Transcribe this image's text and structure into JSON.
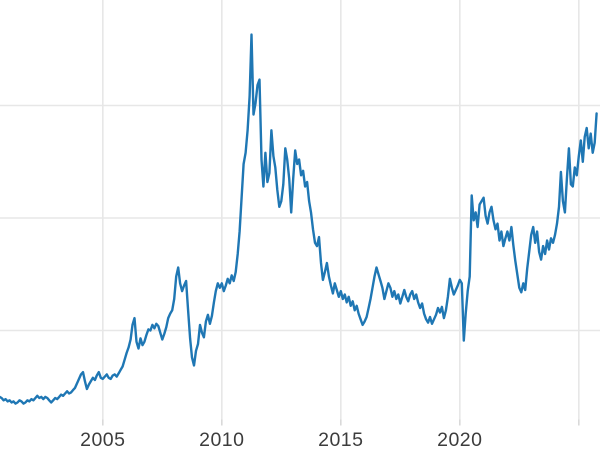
{
  "chart_data": {
    "type": "line",
    "title": "",
    "xlabel": "",
    "ylabel": "",
    "legend": null,
    "grid": true,
    "y_axis_labels_visible": false,
    "x_ticks": [
      {
        "year": 2005,
        "label": "2005"
      },
      {
        "year": 2010,
        "label": "2010"
      },
      {
        "year": 2015,
        "label": "2015"
      },
      {
        "year": 2020,
        "label": "2020"
      },
      {
        "year": 2025,
        "label": ""
      }
    ],
    "y_gridlines_relative_units": [
      1,
      2,
      3
    ],
    "xlim": [
      2000.68,
      2025.89
    ],
    "ylim_relative_units": [
      0.2,
      3.94
    ],
    "colors": {
      "line": "#1f77b4",
      "gridline": "#e7e7e7",
      "tick_mark": "#d9d9d9",
      "tick_label": "#3c3c3c",
      "background": "#ffffff"
    },
    "series": {
      "name": "price-line",
      "x_start_year": 2000.5833,
      "x_step_years": 0.0833333,
      "note": "y values in relative units; horizontal gridlines sit at 1, 2 and 3 (no numeric y labels visible in image)",
      "y_relative_units": [
        0.4,
        0.41,
        0.4,
        0.38,
        0.39,
        0.37,
        0.38,
        0.36,
        0.37,
        0.35,
        0.36,
        0.38,
        0.37,
        0.35,
        0.36,
        0.38,
        0.37,
        0.39,
        0.38,
        0.4,
        0.42,
        0.4,
        0.41,
        0.39,
        0.41,
        0.4,
        0.38,
        0.36,
        0.38,
        0.4,
        0.39,
        0.41,
        0.43,
        0.42,
        0.44,
        0.46,
        0.44,
        0.45,
        0.47,
        0.49,
        0.53,
        0.57,
        0.61,
        0.63,
        0.55,
        0.48,
        0.52,
        0.55,
        0.58,
        0.56,
        0.6,
        0.63,
        0.58,
        0.57,
        0.59,
        0.61,
        0.58,
        0.57,
        0.6,
        0.61,
        0.59,
        0.62,
        0.65,
        0.68,
        0.74,
        0.8,
        0.85,
        0.92,
        1.05,
        1.11,
        0.9,
        0.84,
        0.93,
        0.87,
        0.9,
        0.96,
        1.01,
        1.0,
        1.05,
        1.02,
        1.06,
        1.04,
        0.98,
        0.92,
        0.97,
        1.03,
        1.11,
        1.15,
        1.18,
        1.28,
        1.48,
        1.56,
        1.42,
        1.35,
        1.4,
        1.44,
        1.18,
        0.93,
        0.76,
        0.69,
        0.82,
        0.88,
        1.05,
        0.98,
        0.94,
        1.08,
        1.14,
        1.06,
        1.13,
        1.25,
        1.35,
        1.42,
        1.38,
        1.42,
        1.35,
        1.4,
        1.46,
        1.42,
        1.49,
        1.44,
        1.52,
        1.68,
        1.88,
        2.18,
        2.48,
        2.58,
        2.78,
        3.08,
        3.63,
        2.92,
        3.02,
        3.18,
        3.23,
        2.52,
        2.28,
        2.58,
        2.32,
        2.4,
        2.78,
        2.55,
        2.45,
        2.25,
        2.1,
        2.15,
        2.3,
        2.62,
        2.52,
        2.35,
        2.05,
        2.35,
        2.6,
        2.48,
        2.52,
        2.38,
        2.42,
        2.28,
        2.32,
        2.15,
        2.05,
        1.9,
        1.78,
        1.75,
        1.83,
        1.6,
        1.45,
        1.52,
        1.6,
        1.48,
        1.4,
        1.33,
        1.42,
        1.36,
        1.3,
        1.35,
        1.28,
        1.32,
        1.25,
        1.3,
        1.22,
        1.26,
        1.18,
        1.22,
        1.15,
        1.1,
        1.05,
        1.08,
        1.12,
        1.2,
        1.28,
        1.38,
        1.48,
        1.56,
        1.5,
        1.44,
        1.38,
        1.28,
        1.35,
        1.42,
        1.38,
        1.3,
        1.35,
        1.28,
        1.32,
        1.24,
        1.3,
        1.36,
        1.3,
        1.26,
        1.32,
        1.35,
        1.28,
        1.32,
        1.25,
        1.2,
        1.24,
        1.15,
        1.1,
        1.07,
        1.12,
        1.06,
        1.1,
        1.14,
        1.2,
        1.16,
        1.21,
        1.11,
        1.18,
        1.3,
        1.46,
        1.38,
        1.32,
        1.36,
        1.4,
        1.45,
        1.42,
        0.91,
        1.15,
        1.35,
        1.48,
        2.2,
        1.98,
        2.05,
        1.92,
        2.12,
        2.15,
        2.18,
        2.02,
        1.95,
        2.05,
        2.1,
        1.98,
        1.9,
        1.95,
        1.8,
        1.88,
        1.75,
        1.82,
        1.88,
        1.8,
        1.92,
        1.76,
        1.62,
        1.5,
        1.38,
        1.34,
        1.42,
        1.36,
        1.55,
        1.7,
        1.85,
        1.92,
        1.78,
        1.88,
        1.7,
        1.63,
        1.75,
        1.68,
        1.8,
        1.72,
        1.82,
        1.78,
        1.85,
        1.95,
        2.1,
        2.41,
        2.15,
        2.05,
        2.35,
        2.62,
        2.3,
        2.28,
        2.45,
        2.38,
        2.55,
        2.69,
        2.5,
        2.72,
        2.8,
        2.62,
        2.75,
        2.58,
        2.67,
        2.93
      ]
    }
  }
}
